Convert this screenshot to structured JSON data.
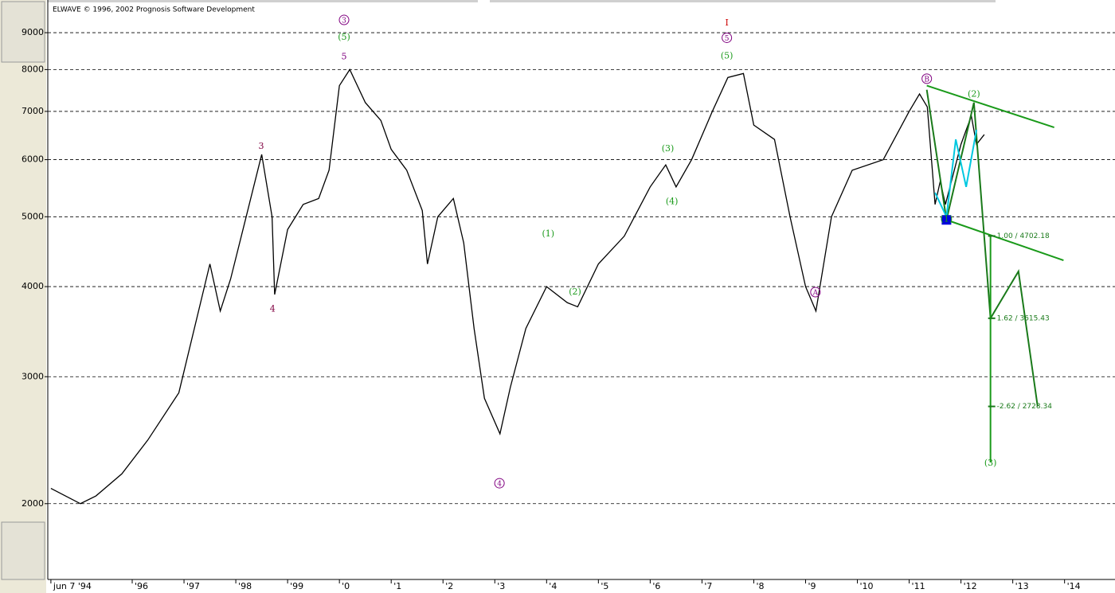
{
  "chart_data": {
    "type": "line",
    "title": "ELWAVE © 1996, 2002 Prognosis Software Development",
    "log_y": true,
    "grid": true,
    "color": "#000000",
    "xlim": [
      1994.37,
      2014.82
    ],
    "ylim": [
      1570,
      9990
    ],
    "yticks": [
      2000,
      3000,
      4000,
      5000,
      6000,
      7000,
      8000,
      9000
    ],
    "xticks": [
      {
        "value": 1994.43,
        "label": "jun 7 '94"
      },
      {
        "value": 1996,
        "label": "'96"
      },
      {
        "value": 1997,
        "label": "'97"
      },
      {
        "value": 1998,
        "label": "'98"
      },
      {
        "value": 1999,
        "label": "'99"
      },
      {
        "value": 2000,
        "label": "'0"
      },
      {
        "value": 2001,
        "label": "'1"
      },
      {
        "value": 2002,
        "label": "'2"
      },
      {
        "value": 2003,
        "label": "'3"
      },
      {
        "value": 2004,
        "label": "'4"
      },
      {
        "value": 2005,
        "label": "'5"
      },
      {
        "value": 2006,
        "label": "'6"
      },
      {
        "value": 2007,
        "label": "'7"
      },
      {
        "value": 2008,
        "label": "'8"
      },
      {
        "value": 2009,
        "label": "'9"
      },
      {
        "value": 2010,
        "label": "'10"
      },
      {
        "value": 2011,
        "label": "'11"
      },
      {
        "value": 2012,
        "label": "'12"
      },
      {
        "value": 2013,
        "label": "'13"
      },
      {
        "value": 2014,
        "label": "'14"
      }
    ],
    "x": [
      1994.43,
      1995.0,
      1995.3,
      1995.8,
      1996.3,
      1996.9,
      1997.5,
      1997.7,
      1997.9,
      1998.2,
      1998.5,
      1998.7,
      1998.75,
      1999.0,
      1999.3,
      1999.6,
      1999.8,
      2000.0,
      2000.2,
      2000.5,
      2000.8,
      2001.0,
      2001.3,
      2001.6,
      2001.7,
      2001.9,
      2002.2,
      2002.4,
      2002.6,
      2002.8,
      2003.1,
      2003.3,
      2003.6,
      2004.0,
      2004.4,
      2004.6,
      2005.0,
      2005.5,
      2006.0,
      2006.3,
      2006.5,
      2006.8,
      2007.2,
      2007.5,
      2007.8,
      2008.0,
      2008.4,
      2008.7,
      2009.0,
      2009.2,
      2009.5,
      2009.9,
      2010.5,
      2011.0,
      2011.2,
      2011.35,
      2011.5,
      2011.6,
      2011.7,
      2012.0,
      2012.2,
      2012.3,
      2012.45
    ],
    "values": [
      2100,
      2000,
      2050,
      2200,
      2450,
      2850,
      4300,
      3700,
      4100,
      5000,
      6100,
      5000,
      3900,
      4800,
      5200,
      5300,
      5800,
      7600,
      8000,
      7200,
      6800,
      6200,
      5800,
      5100,
      4300,
      5000,
      5300,
      4600,
      3500,
      2800,
      2500,
      2900,
      3500,
      4000,
      3800,
      3750,
      4300,
      4700,
      5500,
      5900,
      5500,
      6000,
      7000,
      7800,
      7900,
      6700,
      6400,
      5000,
      4000,
      3700,
      5000,
      5800,
      6000,
      7000,
      7400,
      7100,
      5200,
      5600,
      5200,
      6300,
      6900,
      6300,
      6500
    ],
    "overlays": [
      {
        "x": [
          2011.34,
          2011.72,
          2012.25,
          2012.57,
          2013.11,
          2013.48
        ],
        "y": [
          7500,
          4950,
          7200,
          3615.43,
          4200,
          2728.34
        ],
        "color": "#1a7a1a"
      },
      {
        "x": [
          2011.34,
          2013.8
        ],
        "y": [
          7600,
          6650
        ],
        "color": "#1a9a1a"
      },
      {
        "x": [
          2011.72,
          2013.98
        ],
        "y": [
          4950,
          4350
        ],
        "color": "#1a9a1a"
      },
      {
        "x": [
          2011.5,
          2011.72,
          2011.9,
          2012.1,
          2012.3
        ],
        "y": [
          5400,
          5000,
          6400,
          5500,
          6600
        ],
        "color": "#00c8e0"
      },
      {
        "x": [
          2012.57,
          2012.57
        ],
        "y": [
          4702.18,
          2282
        ],
        "color": "#1a9a1a"
      }
    ],
    "annotations": [
      {
        "text": "3",
        "x": 2000.09,
        "y": 9374,
        "color": "#800080",
        "circled": true
      },
      {
        "text": "(5)",
        "x": 2000.09,
        "y": 8889,
        "color": "#1a9a1a"
      },
      {
        "text": "5",
        "x": 2000.09,
        "y": 8349,
        "color": "#800080"
      },
      {
        "text": "3",
        "x": 1998.49,
        "y": 6271,
        "color": "#800040"
      },
      {
        "text": "4",
        "x": 1998.71,
        "y": 3730,
        "color": "#800040"
      },
      {
        "text": "4",
        "x": 2003.09,
        "y": 2135,
        "color": "#800080",
        "circled": true
      },
      {
        "text": "(1)",
        "x": 2004.03,
        "y": 4743,
        "color": "#1a9a1a"
      },
      {
        "text": "(2)",
        "x": 2004.55,
        "y": 3939,
        "color": "#1a9a1a"
      },
      {
        "text": "(3)",
        "x": 2006.34,
        "y": 6225,
        "color": "#1a9a1a"
      },
      {
        "text": "(4)",
        "x": 2006.42,
        "y": 5260,
        "color": "#1a9a1a"
      },
      {
        "text": "I",
        "x": 2007.48,
        "y": 9300,
        "color": "#cc0000"
      },
      {
        "text": "5",
        "x": 2007.48,
        "y": 8855,
        "color": "#800080",
        "circled": true
      },
      {
        "text": "(5)",
        "x": 2007.48,
        "y": 8370,
        "color": "#1a9a1a"
      },
      {
        "text": "A",
        "x": 2009.19,
        "y": 3930,
        "color": "#800080",
        "circled": true
      },
      {
        "text": "B",
        "x": 2011.34,
        "y": 7770,
        "color": "#800080",
        "circled": true
      },
      {
        "text": "(2)",
        "x": 2012.25,
        "y": 7410,
        "color": "#1a9a1a"
      },
      {
        "text": "(1)",
        "x": 2011.72,
        "y": 4970,
        "color": "#1a9a1a"
      },
      {
        "text": "(3)",
        "x": 2012.57,
        "y": 2282,
        "color": "#1a9a1a"
      }
    ],
    "levels": [
      {
        "text": "1.00 / 4702.18",
        "x": 2012.57,
        "y": 4702.18
      },
      {
        "text": "1.62 / 3615.43",
        "x": 2012.57,
        "y": 3615.43
      },
      {
        "text": "-2.62 / 2728.34",
        "x": 2012.57,
        "y": 2728.34
      }
    ],
    "marker": {
      "x": 2011.72,
      "y": 4950,
      "color": "#0000dd"
    }
  }
}
